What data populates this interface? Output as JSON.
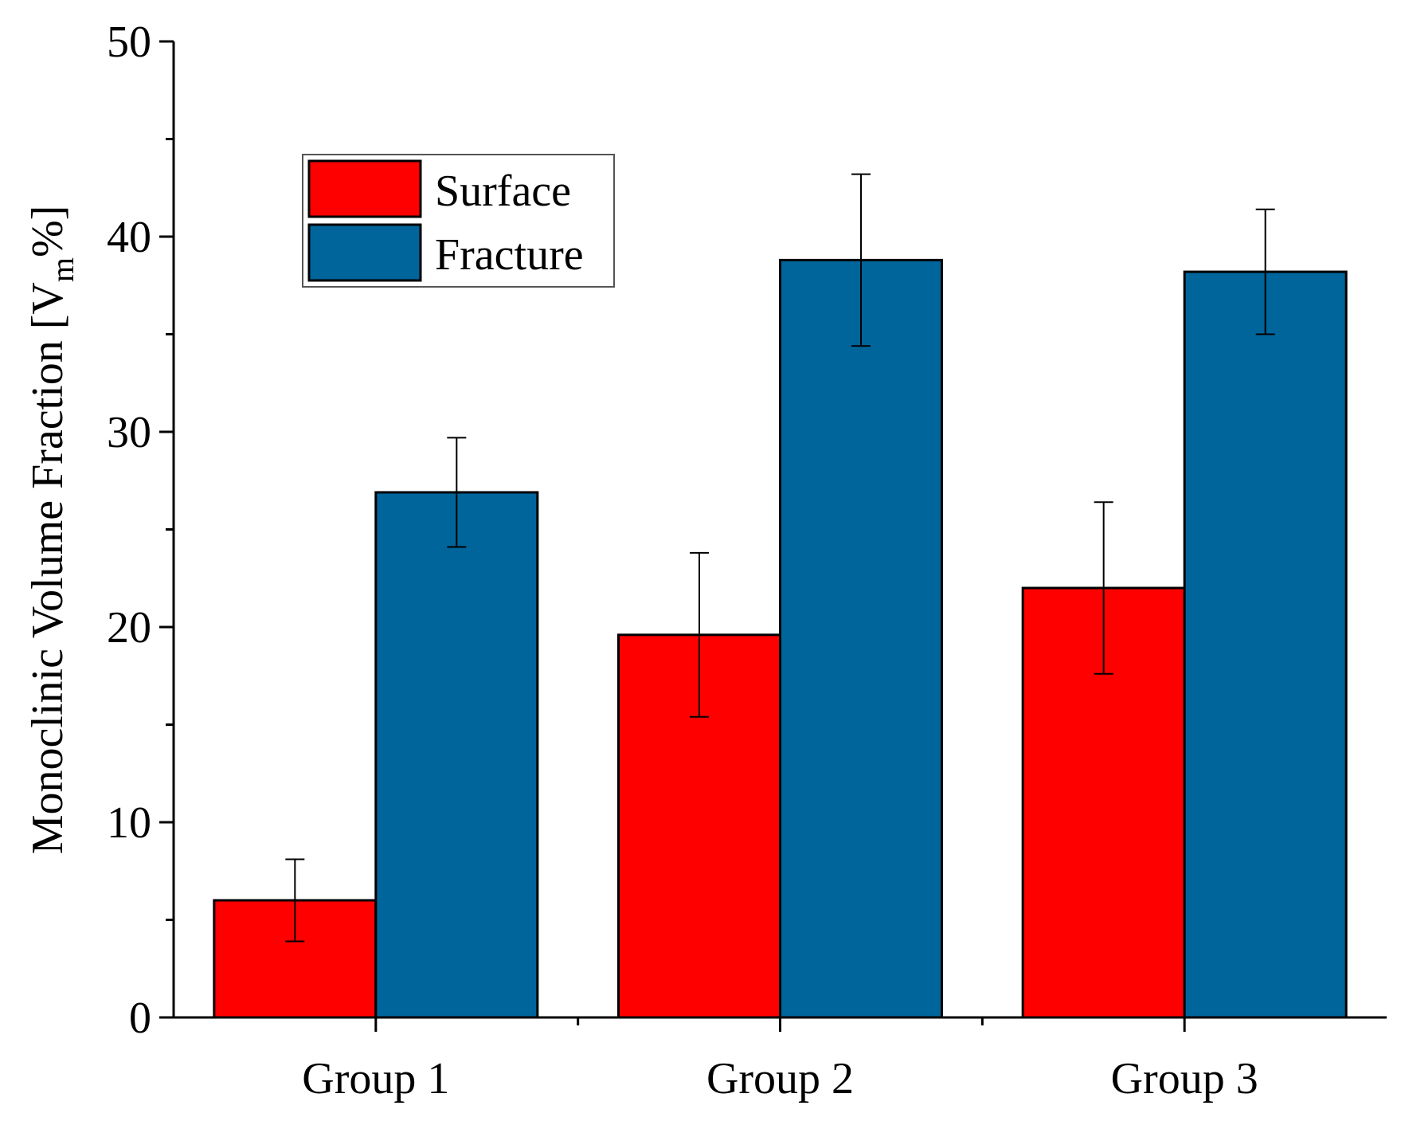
{
  "chart_data": {
    "type": "bar",
    "title": "",
    "xlabel": "",
    "ylabel": {
      "main": "Monoclinic Volume Fraction [V",
      "subscript": "m",
      "suffix": "%]"
    },
    "ylim": [
      0,
      50
    ],
    "yticks": [
      "0",
      "10",
      "20",
      "30",
      "40",
      "50"
    ],
    "categories": [
      "Group 1",
      "Group 2",
      "Group 3"
    ],
    "series": [
      {
        "name": "Surface",
        "color": "#ff0000",
        "values": [
          6.0,
          19.6,
          22.0
        ],
        "errors": [
          2.1,
          4.2,
          4.4
        ]
      },
      {
        "name": "Fracture",
        "color": "#00659b",
        "values": [
          26.9,
          38.8,
          38.2
        ],
        "errors": [
          2.8,
          4.4,
          3.2
        ]
      }
    ],
    "legend": {
      "position": "top-left",
      "entries": [
        "Surface",
        "Fracture"
      ]
    }
  }
}
